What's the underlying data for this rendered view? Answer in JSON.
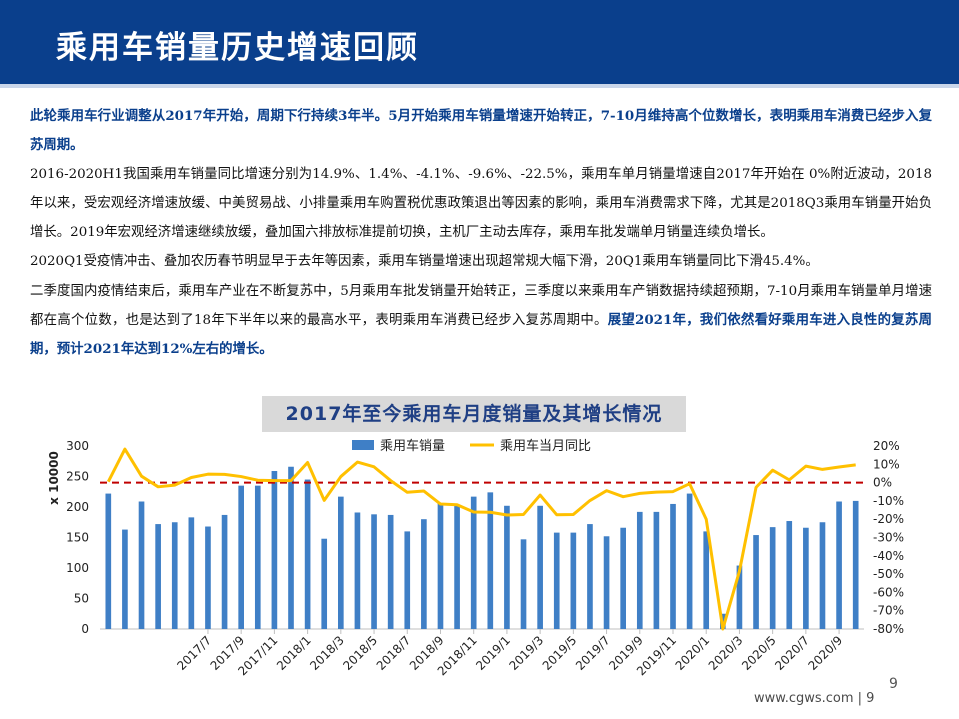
{
  "header": {
    "title": "乘用车销量历史增速回顾"
  },
  "paragraphs": {
    "p1_bold": "此轮乘用车行业调整从2017年开始，周期下行持续3年半。5月开始乘用车销量增速开始转正，7-10月维持高个位数增长，表明乘用车消费已经步入复苏周期。",
    "p2": "2016-2020H1我国乘用车销量同比增速分别为14.9%、1.4%、-4.1%、-9.6%、-22.5%，乘用车单月销量增速自2017年开始在 0%附近波动，2018年以来，受宏观经济增速放缓、中美贸易战、小排量乘用车购置税优惠政策退出等因素的影响，乘用车消费需求下降，尤其是2018Q3乘用车销量开始负增长。2019年宏观经济增速继续放缓，叠加国六排放标准提前切换，主机厂主动去库存，乘用车批发端单月销量连续负增长。",
    "p3": "2020Q1受疫情冲击、叠加农历春节明显早于去年等因素，乘用车销量增速出现超常规大幅下滑，20Q1乘用车销量同比下滑45.4%。",
    "p4_normal": "二季度国内疫情结束后，乘用车产业在不断复苏中，5月乘用车批发销量开始转正，三季度以来乘用车产销数据持续超预期，7-10月乘用车销量单月增速都在高个位数，也是达到了18年下半年以来的最高水平，表明乘用车消费已经步入复苏周期中。",
    "p4_bold": "展望2021年，我们依然看好乘用车进入良性的复苏周期，预计2021年达到12%左右的增长。"
  },
  "chart_data": {
    "type": "bar+line",
    "title": "2017年至今乘用车月度销量及其增长情况",
    "ylabel": "x 10000",
    "ylim": [
      0,
      300
    ],
    "yticks": [
      "0",
      "50",
      "100",
      "150",
      "200",
      "250",
      "300"
    ],
    "y2lim": [
      -80,
      20
    ],
    "y2ticks": [
      "-80%",
      "-70%",
      "-60%",
      "-50%",
      "-40%",
      "-30%",
      "-20%",
      "-10%",
      "0%",
      "10%",
      "20%"
    ],
    "reference_line": 0,
    "categories": [
      "2017/1",
      "2017/2",
      "2017/3",
      "2017/4",
      "2017/5",
      "2017/6",
      "2017/7",
      "2017/8",
      "2017/9",
      "2017/10",
      "2017/11",
      "2017/12",
      "2018/1",
      "2018/2",
      "2018/3",
      "2018/4",
      "2018/5",
      "2018/6",
      "2018/7",
      "2018/8",
      "2018/9",
      "2018/10",
      "2018/11",
      "2018/12",
      "2019/1",
      "2019/2",
      "2019/3",
      "2019/4",
      "2019/5",
      "2019/6",
      "2019/7",
      "2019/8",
      "2019/9",
      "2019/10",
      "2019/11",
      "2019/12",
      "2020/1",
      "2020/2",
      "2020/3",
      "2020/4",
      "2020/5",
      "2020/6",
      "2020/7",
      "2020/8",
      "2020/9",
      "2020/10"
    ],
    "x_tick_labels": [
      "2017/7",
      "2017/9",
      "2017/11",
      "2018/1",
      "2018/3",
      "2018/5",
      "2018/7",
      "2018/9",
      "2018/11",
      "2019/1",
      "2019/3",
      "2019/5",
      "2019/7",
      "2019/9",
      "2019/11",
      "2020/1",
      "2020/3",
      "2020/5",
      "2020/7",
      "2020/9"
    ],
    "series": [
      {
        "name": "乘用车销量",
        "axis": "left",
        "color": "#3f7fc6",
        "values": [
          222,
          163,
          209,
          172,
          175,
          183,
          168,
          187,
          235,
          235,
          259,
          266,
          245,
          148,
          217,
          191,
          188,
          187,
          160,
          180,
          206,
          203,
          217,
          224,
          202,
          147,
          202,
          158,
          158,
          172,
          152,
          166,
          192,
          192,
          205,
          222,
          160,
          25,
          104,
          154,
          167,
          177,
          166,
          175,
          209,
          210
        ]
      },
      {
        "name": "乘用车当月同比",
        "axis": "right",
        "color": "#ffc000",
        "values": [
          0.5,
          18.3,
          3.5,
          -2.3,
          -1.4,
          2.8,
          4.6,
          4.5,
          3.3,
          1.3,
          1.1,
          1.1,
          11,
          -9.7,
          3.3,
          11.2,
          8.6,
          1.1,
          -5.3,
          -4.6,
          -11.7,
          -12.1,
          -16.1,
          -16.2,
          -17.7,
          -17.4,
          -6.8,
          -17.6,
          -17.4,
          -9.8,
          -4.4,
          -7.7,
          -5.9,
          -5.2,
          -4.9,
          -0.6,
          -20,
          -80,
          -48.4,
          -2.6,
          6.8,
          1.5,
          9,
          7.2,
          8.5,
          9.7
        ]
      }
    ],
    "colors": {
      "bar": "#3f7fc6",
      "line": "#ffc000",
      "zero_line": "#c00000",
      "header": "#0a3f8c",
      "highlight_text": "#0a3f8c"
    }
  },
  "footer": {
    "site": "www.cgws.com | 9",
    "page": "9"
  }
}
